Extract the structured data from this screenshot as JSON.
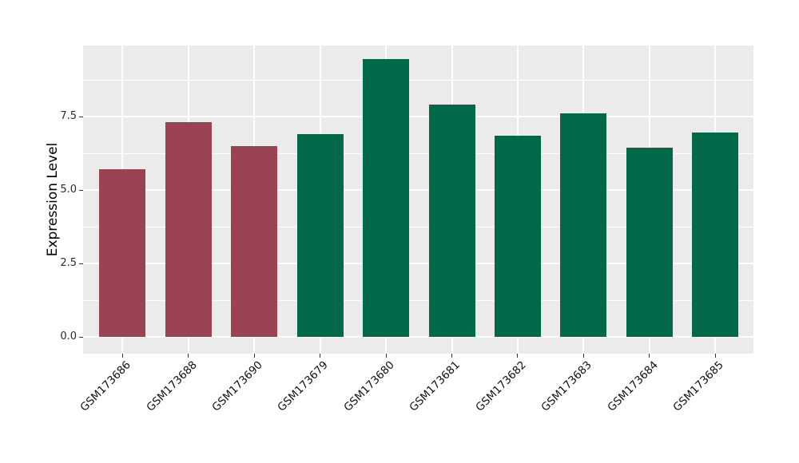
{
  "figure": {
    "background_color": "#FFFFFF",
    "panel_background_color": "#EBEBEB",
    "gridline_color": "#FFFFFF",
    "tick_color": "#333333",
    "axis_text_color": "#2B2B2B",
    "axis_title_color": "#000000"
  },
  "chart_data": {
    "type": "bar",
    "title": "",
    "xlabel": "",
    "ylabel": "Expression Level",
    "categories": [
      "GSM173686",
      "GSM173688",
      "GSM173690",
      "GSM173679",
      "GSM173680",
      "GSM173681",
      "GSM173682",
      "GSM173683",
      "GSM173684",
      "GSM173685"
    ],
    "values": [
      5.7,
      7.3,
      6.5,
      6.9,
      9.45,
      7.9,
      6.85,
      7.6,
      6.45,
      6.95
    ],
    "bar_colors": [
      "#9A4453",
      "#9A4453",
      "#9A4453",
      "#036849",
      "#036849",
      "#036849",
      "#036849",
      "#036849",
      "#036849",
      "#036849"
    ],
    "group_colors": {
      "maroon": "#9A4453",
      "green": "#036849"
    },
    "y_tick_labels": [
      "0.0",
      "2.5",
      "5.0",
      "7.5"
    ],
    "y_tick_values": [
      0,
      2.5,
      5.0,
      7.5
    ],
    "y_minor_tick_values": [
      1.25,
      3.75,
      6.25,
      8.75
    ],
    "ylim": [
      -0.5,
      9.9
    ],
    "x_tick_angle_deg": 45,
    "grid": true,
    "legend_position": "none"
  }
}
